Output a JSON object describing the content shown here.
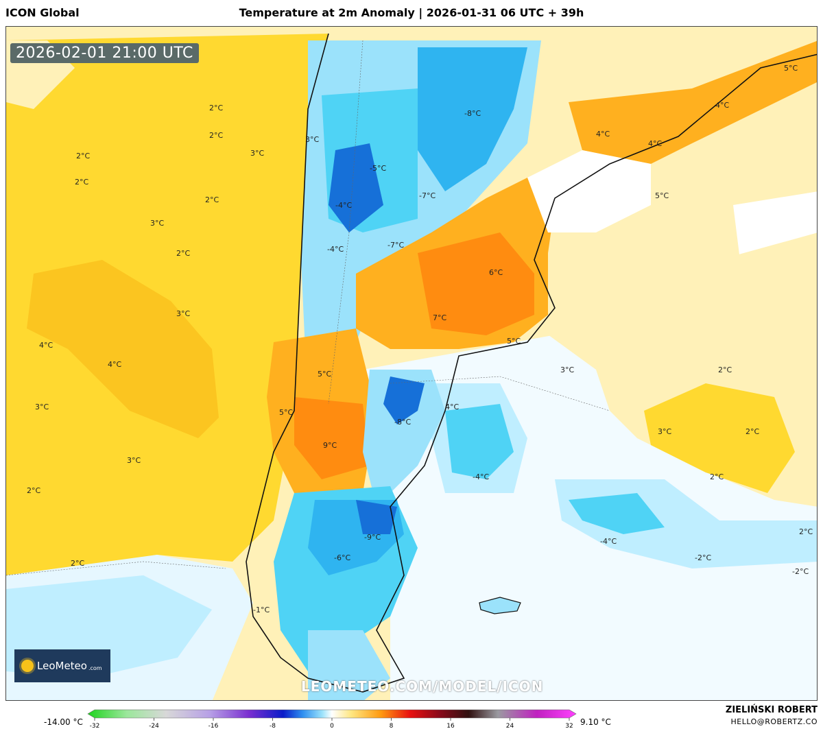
{
  "header": {
    "model": "ICON Global",
    "title": "Temperature at 2m Anomaly | 2026-01-31 06 UTC + 39h"
  },
  "map": {
    "valid_time": "2026-02-01 21:00 UTC",
    "watermark": "LEOMETEO.COM/MODEL/ICON",
    "logo": {
      "name": "LeoMeteo",
      "domain": ".com",
      "icon": "sun-icon"
    },
    "labels": [
      {
        "text": "2°C",
        "color": "#222"
      },
      {
        "text": "2°C",
        "color": "#222"
      },
      {
        "text": "2°C",
        "color": "#222"
      },
      {
        "text": "3°C",
        "color": "#222"
      },
      {
        "text": "3°C",
        "color": "#222"
      },
      {
        "text": "2°C",
        "color": "#222"
      },
      {
        "text": "2°C",
        "color": "#222"
      },
      {
        "text": "3°C",
        "color": "#222"
      },
      {
        "text": "2°C",
        "color": "#222"
      },
      {
        "text": "3°C",
        "color": "#222"
      },
      {
        "text": "4°C",
        "color": "#222"
      },
      {
        "text": "4°C",
        "color": "#222"
      },
      {
        "text": "3°C",
        "color": "#222"
      },
      {
        "text": "3°C",
        "color": "#222"
      },
      {
        "text": "2°C",
        "color": "#222"
      },
      {
        "text": "2°C",
        "color": "#222"
      },
      {
        "text": "-8°C",
        "color": "#222"
      },
      {
        "text": "-7°C",
        "color": "#222"
      },
      {
        "text": "-7°C",
        "color": "#222"
      },
      {
        "text": "-5°C",
        "color": "#222"
      },
      {
        "text": "-4°C",
        "color": "#222"
      },
      {
        "text": "-4°C",
        "color": "#222"
      },
      {
        "text": "6°C",
        "color": "#222"
      },
      {
        "text": "7°C",
        "color": "#222"
      },
      {
        "text": "5°C",
        "color": "#222"
      },
      {
        "text": "5°C",
        "color": "#222"
      },
      {
        "text": "5°C",
        "color": "#222"
      },
      {
        "text": "9°C",
        "color": "#222"
      },
      {
        "text": "-8°C",
        "color": "#222"
      },
      {
        "text": "4°C",
        "color": "#222"
      },
      {
        "text": "4°C",
        "color": "#222"
      },
      {
        "text": "4°C",
        "color": "#222"
      },
      {
        "text": "5°C",
        "color": "#222"
      },
      {
        "text": "4°C",
        "color": "#222"
      },
      {
        "text": "5°C",
        "color": "#222"
      },
      {
        "text": "3°C",
        "color": "#222"
      },
      {
        "text": "2°C",
        "color": "#222"
      },
      {
        "text": "3°C",
        "color": "#222"
      },
      {
        "text": "2°C",
        "color": "#222"
      },
      {
        "text": "2°C",
        "color": "#222"
      },
      {
        "text": "-4°C",
        "color": "#222"
      },
      {
        "text": "-4°C",
        "color": "#222"
      },
      {
        "text": "-2°C",
        "color": "#222"
      },
      {
        "text": "2°C",
        "color": "#222"
      },
      {
        "text": "-2°C",
        "color": "#222"
      },
      {
        "text": "-9°C",
        "color": "#222"
      },
      {
        "text": "-6°C",
        "color": "#222"
      },
      {
        "text": "-1°C",
        "color": "#222"
      }
    ]
  },
  "legend": {
    "min_label": "-14.00 °C",
    "max_label": "9.10 °C",
    "ticks": [
      "-32",
      "-24",
      "-16",
      "-8",
      "0",
      "8",
      "16",
      "24",
      "32"
    ],
    "range": [
      -32,
      32
    ]
  },
  "author": {
    "name": "ZIELIŃSKI ROBERT",
    "email": "HELLO@ROBERTZ.CO"
  }
}
